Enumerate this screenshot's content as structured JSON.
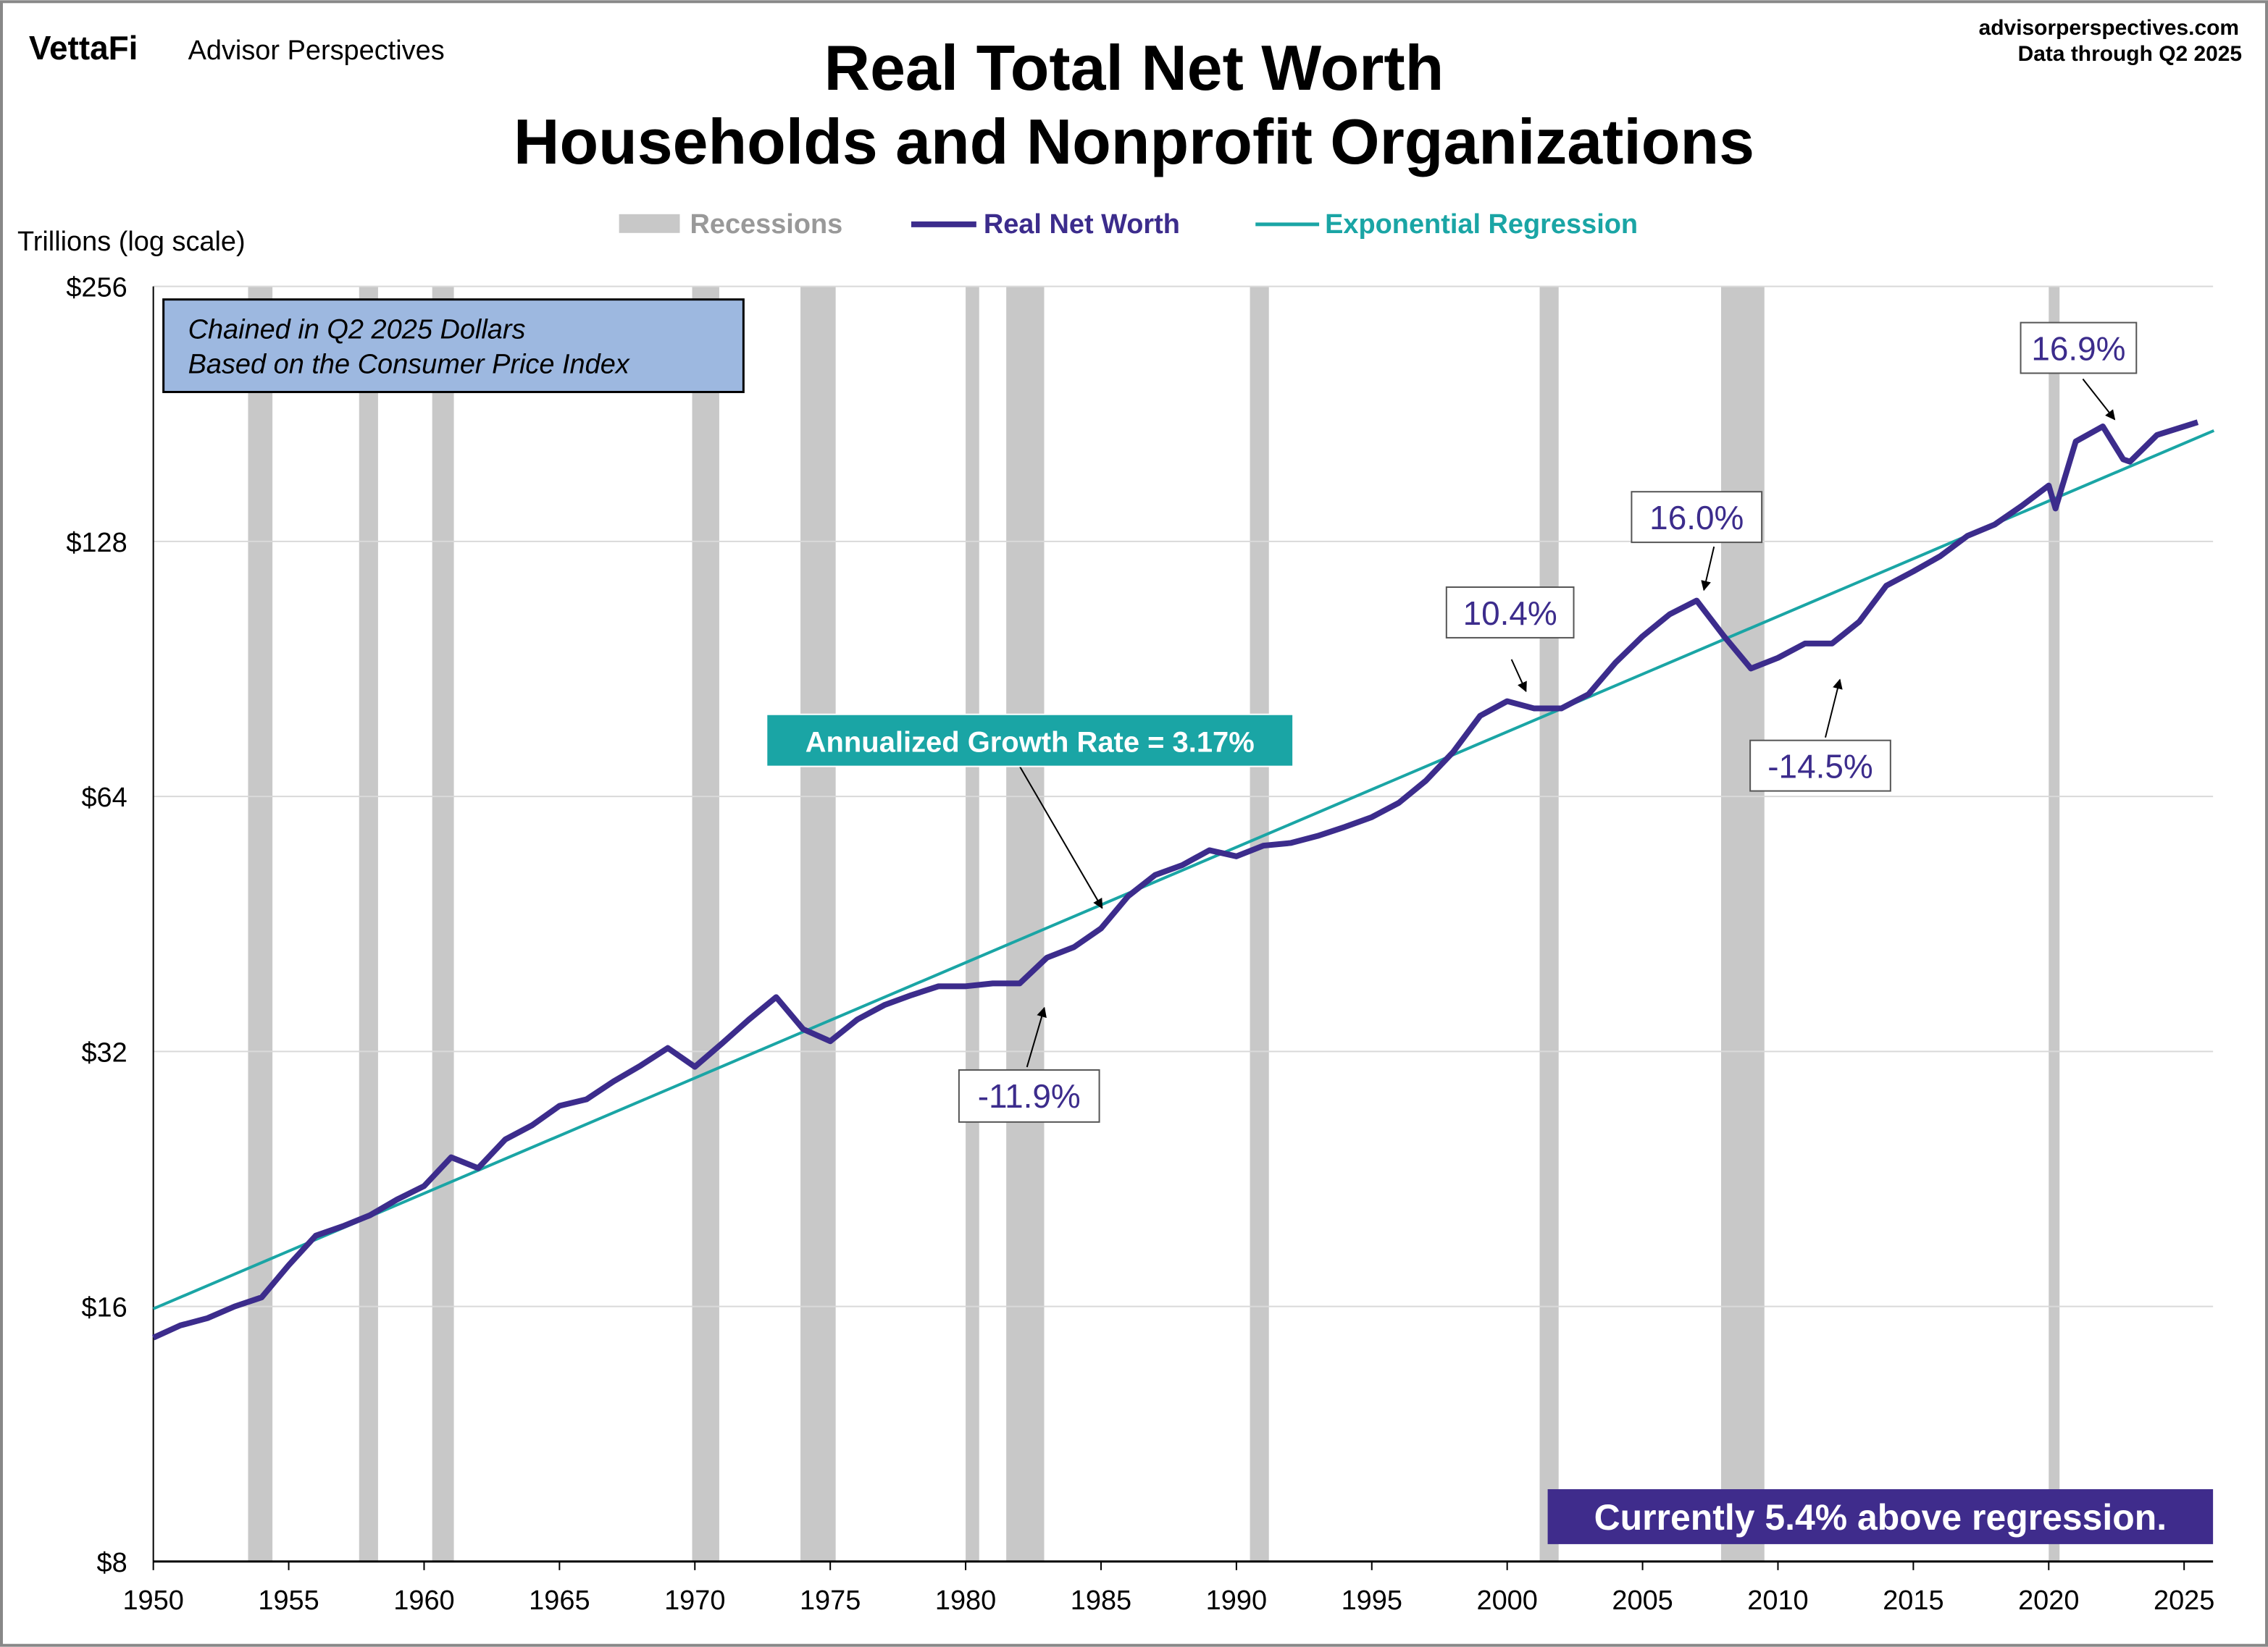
{
  "header": {
    "logo": "VettaFi",
    "brand": "Advisor Perspectives",
    "site": "advisorperspectives.com",
    "data_through": "Data through  Q2 2025"
  },
  "chart_data": {
    "type": "line",
    "title": "Real Total Net Worth",
    "subtitle": "Households and Nonprofit Organizations",
    "ylabel": "Trillions (log scale)",
    "xlabel": "",
    "y_scale": "log2",
    "ylim": [
      8,
      256
    ],
    "xlim": [
      1950,
      2026.1
    ],
    "y_ticks": [
      8,
      16,
      32,
      64,
      128,
      256
    ],
    "y_tick_labels": [
      "$8",
      "$16",
      "$32",
      "$64",
      "$128",
      "$256"
    ],
    "x_ticks": [
      1950,
      1955,
      1960,
      1965,
      1970,
      1975,
      1980,
      1985,
      1990,
      1995,
      2000,
      2005,
      2010,
      2015,
      2020,
      2025
    ],
    "x_tick_labels": [
      "1950",
      "1955",
      "1960",
      "1965",
      "1970",
      "1975",
      "1980",
      "1985",
      "1990",
      "1995",
      "2000",
      "2005",
      "2010",
      "2015",
      "2020",
      "2025"
    ],
    "grid": "horizontal",
    "legend_position": "top-center",
    "legend": [
      {
        "name": "Recessions",
        "color": "#c8c8c8"
      },
      {
        "name": "Real Net Worth",
        "color": "#3c2c8c"
      },
      {
        "name": "Exponential Regression",
        "color": "#1aa5a5"
      }
    ],
    "recessions": [
      [
        1953.5,
        1954.4
      ],
      [
        1957.6,
        1958.3
      ],
      [
        1960.3,
        1961.1
      ],
      [
        1969.9,
        1970.9
      ],
      [
        1973.9,
        1975.2
      ],
      [
        1980.0,
        1980.5
      ],
      [
        1981.5,
        1982.9
      ],
      [
        1990.5,
        1991.2
      ],
      [
        2001.2,
        2001.9
      ],
      [
        2007.9,
        2009.5
      ],
      [
        2020.0,
        2020.4
      ]
    ],
    "series": [
      {
        "name": "Real Net Worth",
        "x": [
          1950,
          1951,
          1952,
          1953,
          1954,
          1955,
          1956,
          1957,
          1958,
          1959,
          1960,
          1961,
          1962,
          1963,
          1964,
          1965,
          1966,
          1967,
          1968,
          1969,
          1970,
          1971,
          1972,
          1973,
          1974,
          1975,
          1976,
          1977,
          1978,
          1979,
          1980,
          1981,
          1982,
          1983,
          1984,
          1985,
          1986,
          1987,
          1988,
          1989,
          1990,
          1991,
          1992,
          1993,
          1994,
          1995,
          1996,
          1997,
          1998,
          1999,
          2000,
          2001,
          2002,
          2003,
          2004,
          2005,
          2006,
          2007,
          2008,
          2009,
          2010,
          2011,
          2012,
          2013,
          2014,
          2015,
          2016,
          2017,
          2018,
          2019,
          2020,
          2020.25,
          2021,
          2022,
          2022.75,
          2023,
          2024,
          2025.5
        ],
        "values": [
          14.7,
          15.2,
          15.5,
          16.0,
          16.4,
          17.9,
          19.4,
          19.9,
          20.5,
          21.4,
          22.2,
          24.0,
          23.3,
          25.2,
          26.2,
          27.6,
          28.1,
          29.5,
          30.8,
          32.3,
          30.7,
          32.7,
          34.9,
          37.1,
          34.0,
          32.9,
          34.9,
          36.3,
          37.3,
          38.2,
          38.2,
          38.5,
          38.5,
          41.3,
          42.5,
          44.7,
          48.8,
          51.7,
          53.1,
          55.3,
          54.4,
          56.0,
          56.4,
          57.5,
          58.9,
          60.5,
          62.9,
          66.8,
          72.2,
          79.7,
          82.9,
          81.3,
          81.3,
          84.5,
          92.1,
          98.9,
          105,
          109,
          99,
          90.6,
          93.3,
          97,
          97,
          102.9,
          113.5,
          118,
          123,
          130,
          134,
          141,
          149,
          140,
          168,
          175,
          160,
          159,
          171,
          177
        ]
      },
      {
        "name": "Exponential Regression",
        "x": [
          1950,
          2026.1
        ],
        "values": [
          15.9,
          173
        ]
      }
    ],
    "annotations": {
      "info_line1": "Chained in Q2 2025 Dollars",
      "info_line2": "Based on the Consumer Price Index",
      "growth": "Annualized Growth Rate = 3.17%",
      "current": "Currently 5.4% above regression.",
      "peaks": [
        "16.9%",
        "16.0%",
        "10.4%",
        "-14.5%",
        "-11.9%"
      ]
    }
  }
}
